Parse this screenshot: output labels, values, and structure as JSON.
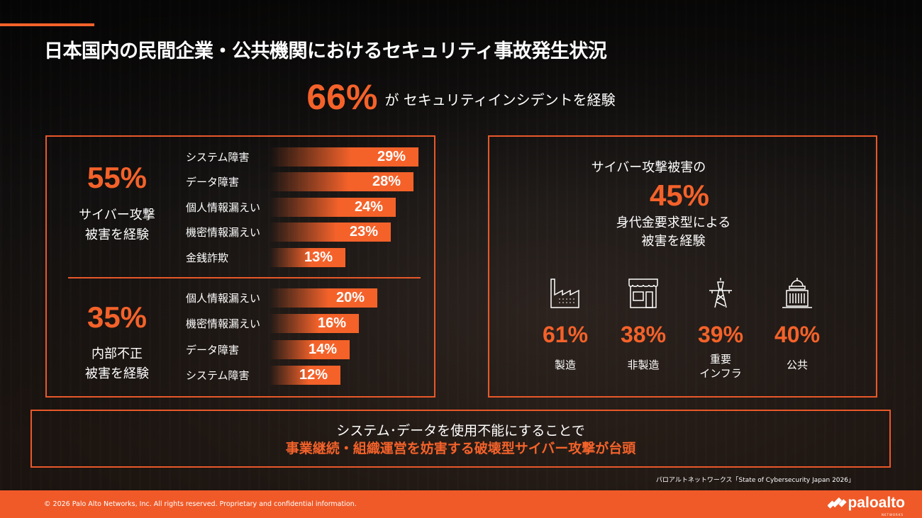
{
  "title": "日本国内の民間企業・公共機関におけるセキュリティ事故発生状況",
  "headline": {
    "value": "66%",
    "text": "が セキュリティインシデントを経験"
  },
  "left": {
    "cyber": {
      "value": "55%",
      "label_l1": "サイバー攻撃",
      "label_l2": "被害を経験",
      "items": [
        {
          "label": "システム障害",
          "value": 29,
          "text": "29%"
        },
        {
          "label": "データ障害",
          "value": 28,
          "text": "28%"
        },
        {
          "label": "個人情報漏えい",
          "value": 24,
          "text": "24%"
        },
        {
          "label": "機密情報漏えい",
          "value": 23,
          "text": "23%"
        },
        {
          "label": "金銭詐欺",
          "value": 13,
          "text": "13%"
        }
      ]
    },
    "insider": {
      "value": "35%",
      "label_l1": "内部不正",
      "label_l2": "被害を経験",
      "items": [
        {
          "label": "個人情報漏えい",
          "value": 20,
          "text": "20%"
        },
        {
          "label": "機密情報漏えい",
          "value": 16,
          "text": "16%"
        },
        {
          "label": "データ障害",
          "value": 14,
          "text": "14%"
        },
        {
          "label": "システム障害",
          "value": 12,
          "text": "12%"
        }
      ]
    }
  },
  "right": {
    "intro": "サイバー攻撃被害の",
    "value": "45%",
    "desc_l1": "身代金要求型による",
    "desc_l2": "被害を経験",
    "sectors": [
      {
        "icon": "factory-icon",
        "value": "61%",
        "label_l1": "製造",
        "label_l2": ""
      },
      {
        "icon": "storefront-icon",
        "value": "38%",
        "label_l1": "非製造",
        "label_l2": ""
      },
      {
        "icon": "power-tower-icon",
        "value": "39%",
        "label_l1": "重要",
        "label_l2": "インフラ"
      },
      {
        "icon": "government-building-icon",
        "value": "40%",
        "label_l1": "公共",
        "label_l2": ""
      }
    ]
  },
  "bottom": {
    "line1": "システム･データを使用不能にすることで",
    "line2": "事業継続・組織運営を妨害する破壊型サイバー攻撃が台頭"
  },
  "source": "パロアルトネットワークス「State of Cybersecurity Japan 2026」",
  "footer": {
    "copyright": "© 2026 Palo Alto Networks, Inc. All rights reserved. Proprietary and confidential information.",
    "logo_text": "paloalto",
    "logo_sub": "NETWORKS"
  },
  "colors": {
    "accent": "#f4622a",
    "footer": "#f05a28"
  }
}
